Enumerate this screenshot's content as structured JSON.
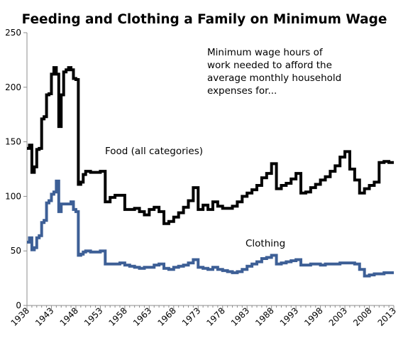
{
  "chart_data": {
    "type": "line",
    "title": "Feeding and Clothing a Family on Minimum Wage",
    "annotation": [
      "Minimum wage hours of",
      "work needed to afford the",
      "average monthly household",
      "expenses for..."
    ],
    "xlabel": "",
    "ylabel": "",
    "xlim": [
      1938,
      2013
    ],
    "ylim": [
      0,
      250
    ],
    "x_ticks": [
      1938,
      1943,
      1948,
      1953,
      1958,
      1963,
      1968,
      1973,
      1978,
      1983,
      1988,
      1993,
      1998,
      2003,
      2008,
      2013
    ],
    "y_ticks": [
      0,
      50,
      100,
      150,
      200,
      250
    ],
    "grid": false,
    "colors": {
      "food": "#000000",
      "clothing": "#3d5f96",
      "axis": "#8c8c8c"
    },
    "series": [
      {
        "name": "Food (all categories)",
        "x": [
          1938,
          1938.5,
          1939,
          1939.5,
          1940,
          1940.5,
          1941,
          1941.5,
          1942,
          1942.5,
          1943,
          1943.5,
          1944,
          1944.5,
          1945,
          1945.5,
          1946,
          1946.5,
          1947,
          1947.5,
          1948,
          1948.5,
          1949,
          1949.5,
          1950,
          1951,
          1952,
          1953,
          1954,
          1955,
          1956,
          1957,
          1958,
          1959,
          1960,
          1961,
          1962,
          1963,
          1964,
          1965,
          1966,
          1967,
          1968,
          1969,
          1970,
          1971,
          1972,
          1973,
          1974,
          1975,
          1976,
          1977,
          1978,
          1979,
          1980,
          1981,
          1982,
          1983,
          1984,
          1985,
          1986,
          1987,
          1988,
          1989,
          1990,
          1991,
          1992,
          1993,
          1994,
          1995,
          1996,
          1997,
          1998,
          1999,
          2000,
          2001,
          2002,
          2003,
          2004,
          2005,
          2006,
          2007,
          2008,
          2009,
          2010,
          2011,
          2012,
          2013
        ],
        "values": [
          144,
          147,
          122,
          127,
          143,
          144,
          171,
          173,
          193,
          194,
          212,
          218,
          212,
          164,
          193,
          214,
          216,
          218,
          216,
          208,
          207,
          111,
          113,
          120,
          123,
          122,
          122,
          123,
          95,
          99,
          101,
          101,
          88,
          88,
          89,
          86,
          83,
          88,
          90,
          86,
          75,
          77,
          81,
          85,
          90,
          96,
          108,
          88,
          92,
          88,
          95,
          91,
          89,
          89,
          91,
          95,
          100,
          103,
          106,
          110,
          117,
          121,
          130,
          107,
          110,
          112,
          116,
          121,
          103,
          104,
          108,
          111,
          115,
          118,
          123,
          128,
          136,
          141,
          125,
          115,
          103,
          107,
          110,
          113,
          131,
          132,
          131,
          131
        ]
      },
      {
        "name": "Clothing",
        "x": [
          1938,
          1938.5,
          1939,
          1939.5,
          1940,
          1940.5,
          1941,
          1941.5,
          1942,
          1942.5,
          1943,
          1943.5,
          1944,
          1944.5,
          1945,
          1945.5,
          1946,
          1946.5,
          1947,
          1947.5,
          1948,
          1948.5,
          1949,
          1949.5,
          1950,
          1951,
          1952,
          1953,
          1954,
          1955,
          1956,
          1957,
          1958,
          1959,
          1960,
          1961,
          1962,
          1963,
          1964,
          1965,
          1966,
          1967,
          1968,
          1969,
          1970,
          1971,
          1972,
          1973,
          1974,
          1975,
          1976,
          1977,
          1978,
          1979,
          1980,
          1981,
          1982,
          1983,
          1984,
          1985,
          1986,
          1987,
          1988,
          1989,
          1990,
          1991,
          1992,
          1993,
          1994,
          1995,
          1996,
          1997,
          1998,
          1999,
          2000,
          2001,
          2002,
          2003,
          2004,
          2005,
          2006,
          2007,
          2008,
          2009,
          2010,
          2011,
          2012,
          2013
        ],
        "values": [
          58,
          62,
          51,
          53,
          62,
          64,
          76,
          78,
          94,
          96,
          102,
          104,
          114,
          86,
          93,
          93,
          93,
          93,
          95,
          88,
          86,
          46,
          47,
          49,
          50,
          49,
          49,
          50,
          38,
          38,
          38,
          39,
          37,
          36,
          35,
          34,
          35,
          35,
          37,
          38,
          34,
          33,
          35,
          36,
          37,
          39,
          42,
          35,
          34,
          33,
          35,
          33,
          32,
          31,
          30,
          31,
          33,
          36,
          38,
          40,
          43,
          44,
          46,
          38,
          39,
          40,
          41,
          42,
          37,
          37,
          38,
          38,
          37,
          38,
          38,
          38,
          39,
          39,
          39,
          38,
          33,
          27,
          28,
          29,
          29,
          30,
          30,
          30
        ]
      }
    ]
  }
}
